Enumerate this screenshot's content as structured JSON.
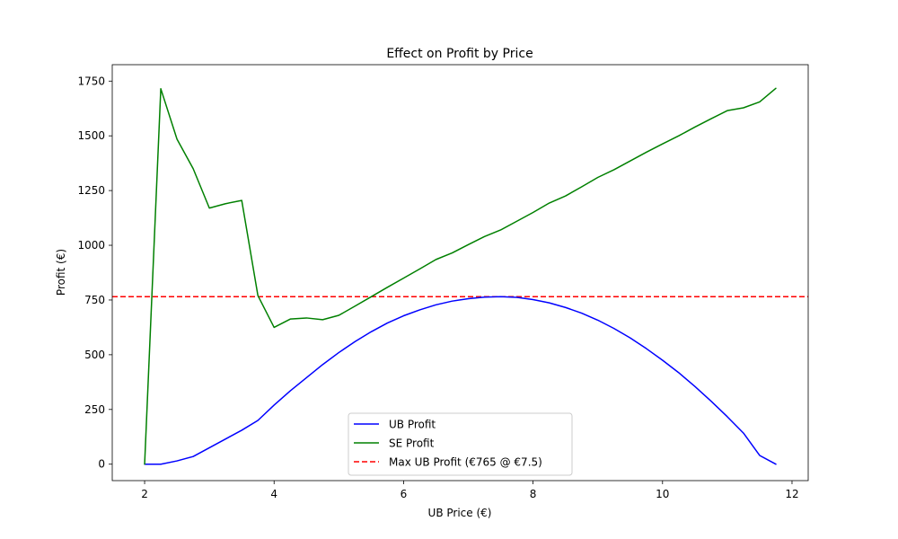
{
  "chart_data": {
    "type": "line",
    "title": "Effect on Profit by Price",
    "xlabel": "UB Price (€)",
    "ylabel": "Profit (€)",
    "xlim": [
      1.5,
      12.25
    ],
    "ylim": [
      -75,
      1825
    ],
    "x_ticks": [
      2,
      4,
      6,
      8,
      10,
      12
    ],
    "y_ticks": [
      0,
      250,
      500,
      750,
      1000,
      1250,
      1500,
      1750
    ],
    "x_tick_labels": [
      "2",
      "4",
      "6",
      "8",
      "10",
      "12"
    ],
    "y_tick_labels": [
      "0",
      "250",
      "500",
      "750",
      "1000",
      "1250",
      "1500",
      "1750"
    ],
    "grid": false,
    "legend_position": "lower-center",
    "series": [
      {
        "name": "UB Profit",
        "color": "#0000ff",
        "style": "solid",
        "x": [
          2,
          2.25,
          2.5,
          2.75,
          3,
          3.25,
          3.5,
          3.75,
          4,
          4.25,
          4.5,
          4.75,
          5,
          5.25,
          5.5,
          5.75,
          6,
          6.25,
          6.5,
          6.75,
          7,
          7.25,
          7.5,
          7.75,
          8,
          8.25,
          8.5,
          8.75,
          9,
          9.25,
          9.5,
          9.75,
          10,
          10.25,
          10.5,
          10.75,
          11,
          11.25,
          11.5,
          11.75
        ],
        "values": [
          0,
          0,
          15,
          35,
          75,
          115,
          155,
          200,
          270,
          335,
          395,
          455,
          510,
          560,
          605,
          645,
          678,
          705,
          728,
          745,
          756,
          763,
          765,
          762,
          752,
          737,
          716,
          690,
          658,
          620,
          577,
          528,
          475,
          418,
          355,
          288,
          217,
          142,
          40,
          0
        ]
      },
      {
        "name": "SE Profit",
        "color": "#008000",
        "style": "solid",
        "x": [
          2,
          2.25,
          2.5,
          2.75,
          3,
          3.25,
          3.5,
          3.75,
          4,
          4.25,
          4.5,
          4.75,
          5,
          5.25,
          5.5,
          5.75,
          6,
          6.25,
          6.5,
          6.75,
          7,
          7.25,
          7.5,
          7.75,
          8,
          8.25,
          8.5,
          8.75,
          9,
          9.25,
          9.5,
          9.75,
          10,
          10.25,
          10.5,
          10.75,
          11,
          11.25,
          11.5,
          11.75
        ],
        "values": [
          0,
          1715,
          1485,
          1350,
          1170,
          1190,
          1205,
          770,
          625,
          663,
          668,
          660,
          680,
          722,
          765,
          808,
          850,
          892,
          935,
          965,
          1003,
          1040,
          1070,
          1110,
          1150,
          1193,
          1225,
          1267,
          1310,
          1345,
          1385,
          1425,
          1463,
          1500,
          1540,
          1578,
          1615,
          1628,
          1655,
          1717
        ]
      }
    ],
    "reference_lines": [
      {
        "name": "Max UB Profit (€765 @ €7.5)",
        "orientation": "horizontal",
        "y": 765,
        "color": "#ff0000",
        "style": "dashed"
      }
    ]
  }
}
